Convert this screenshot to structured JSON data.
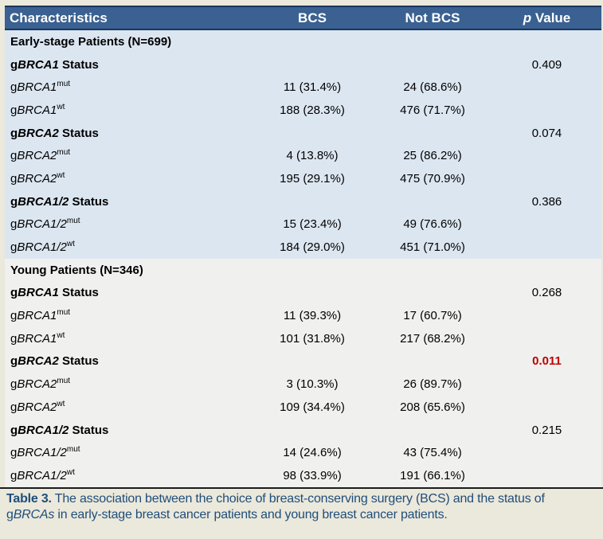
{
  "colors": {
    "page_bg": "#EBE8DC",
    "header_bg": "#3A6191",
    "header_text": "#FFFFFF",
    "border_dark": "#17375E",
    "section1_bg": "#DCE6F1",
    "section2_bg": "#F0F0EF",
    "caption_bg": "#EBE8DC",
    "caption_text": "#1F4E79",
    "highlight_red": "#C00000"
  },
  "header": {
    "characteristics": "Characteristics",
    "bcs": "BCS",
    "not_bcs": "Not BCS",
    "p_italic": "p",
    "p_rest": " Value"
  },
  "sections": [
    {
      "title": "Early-stage Patients (N=699)",
      "groups": [
        {
          "prefix": "g",
          "gene": "BRCA1",
          "suffix": " Status",
          "p": "0.409",
          "rows": [
            {
              "prefix": "g",
              "gene": "BRCA1",
              "sup": "mut",
              "bcs": "11 (31.4%)",
              "not_bcs": "24 (68.6%)"
            },
            {
              "prefix": "g",
              "gene": "BRCA1",
              "sup": "wt",
              "bcs": "188 (28.3%)",
              "not_bcs": "476 (71.7%)"
            }
          ]
        },
        {
          "prefix": "g",
          "gene": "BRCA2",
          "suffix": " Status",
          "p": "0.074",
          "rows": [
            {
              "prefix": "g",
              "gene": "BRCA2",
              "sup": "mut",
              "bcs": "4 (13.8%)",
              "not_bcs": "25 (86.2%)"
            },
            {
              "prefix": "g",
              "gene": "BRCA2",
              "sup": "wt",
              "bcs": "195 (29.1%)",
              "not_bcs": "475 (70.9%)"
            }
          ]
        },
        {
          "prefix": "g",
          "gene": "BRCA1/2",
          "suffix": " Status",
          "p": "0.386",
          "rows": [
            {
              "prefix": "g",
              "gene": "BRCA1/2",
              "sup": "mut",
              "bcs": "15 (23.4%)",
              "not_bcs": "49 (76.6%)"
            },
            {
              "prefix": "g",
              "gene": "BRCA1/2",
              "sup": "wt",
              "bcs": "184 (29.0%)",
              "not_bcs": "451 (71.0%)"
            }
          ]
        }
      ]
    },
    {
      "title": "Young Patients (N=346)",
      "groups": [
        {
          "prefix": "g",
          "gene": "BRCA1",
          "suffix": " Status",
          "p": "0.268",
          "rows": [
            {
              "prefix": "g",
              "gene": "BRCA1",
              "sup": "mut",
              "bcs": "11 (39.3%)",
              "not_bcs": "17 (60.7%)"
            },
            {
              "prefix": "g",
              "gene": "BRCA1",
              "sup": "wt",
              "bcs": "101 (31.8%)",
              "not_bcs": "217 (68.2%)"
            }
          ]
        },
        {
          "prefix": "g",
          "gene": "BRCA2",
          "suffix": " Status",
          "p": "0.011",
          "rows": [
            {
              "prefix": "g",
              "gene": "BRCA2",
              "sup": "mut",
              "bcs": "3 (10.3%)",
              "not_bcs": "26 (89.7%)"
            },
            {
              "prefix": "g",
              "gene": "BRCA2",
              "sup": "wt",
              "bcs": "109 (34.4%)",
              "not_bcs": "208 (65.6%)"
            }
          ]
        },
        {
          "prefix": "g",
          "gene": "BRCA1/2",
          "suffix": " Status",
          "p": "0.215",
          "rows": [
            {
              "prefix": "g",
              "gene": "BRCA1/2",
              "sup": "mut",
              "bcs": "14 (24.6%)",
              "not_bcs": "43 (75.4%)"
            },
            {
              "prefix": "g",
              "gene": "BRCA1/2",
              "sup": "wt",
              "bcs": "98 (33.9%)",
              "not_bcs": "191 (66.1%)"
            }
          ]
        }
      ]
    }
  ],
  "caption": {
    "label": "Table 3.",
    "text_before": " The association between the choice of breast-conserving surgery (BCS) and the status of g",
    "italic": "BRCAs",
    "text_after": " in early-stage breast cancer patients and young breast cancer patients."
  }
}
